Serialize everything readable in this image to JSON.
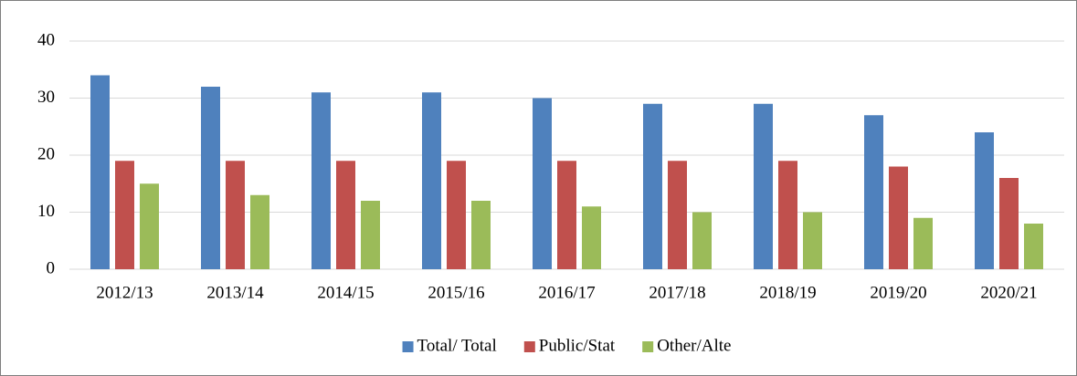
{
  "chart_data": {
    "type": "bar",
    "categories": [
      "2012/13",
      "2013/14",
      "2014/15",
      "2015/16",
      "2016/17",
      "2017/18",
      "2018/19",
      "2019/20",
      "2020/21"
    ],
    "series": [
      {
        "name": "Total/ Total",
        "color": "#4f81bd",
        "values": [
          34,
          32,
          31,
          31,
          30,
          29,
          29,
          27,
          24
        ]
      },
      {
        "name": "Public/Stat",
        "color": "#c0504d",
        "values": [
          19,
          19,
          19,
          19,
          19,
          19,
          19,
          18,
          16
        ]
      },
      {
        "name": "Other/Alte",
        "color": "#9bbb59",
        "values": [
          15,
          13,
          12,
          12,
          11,
          10,
          10,
          9,
          8
        ]
      }
    ],
    "ylim": [
      0,
      40
    ],
    "yticks": [
      0,
      10,
      20,
      30,
      40
    ],
    "grid": true,
    "legend": "bottom"
  }
}
